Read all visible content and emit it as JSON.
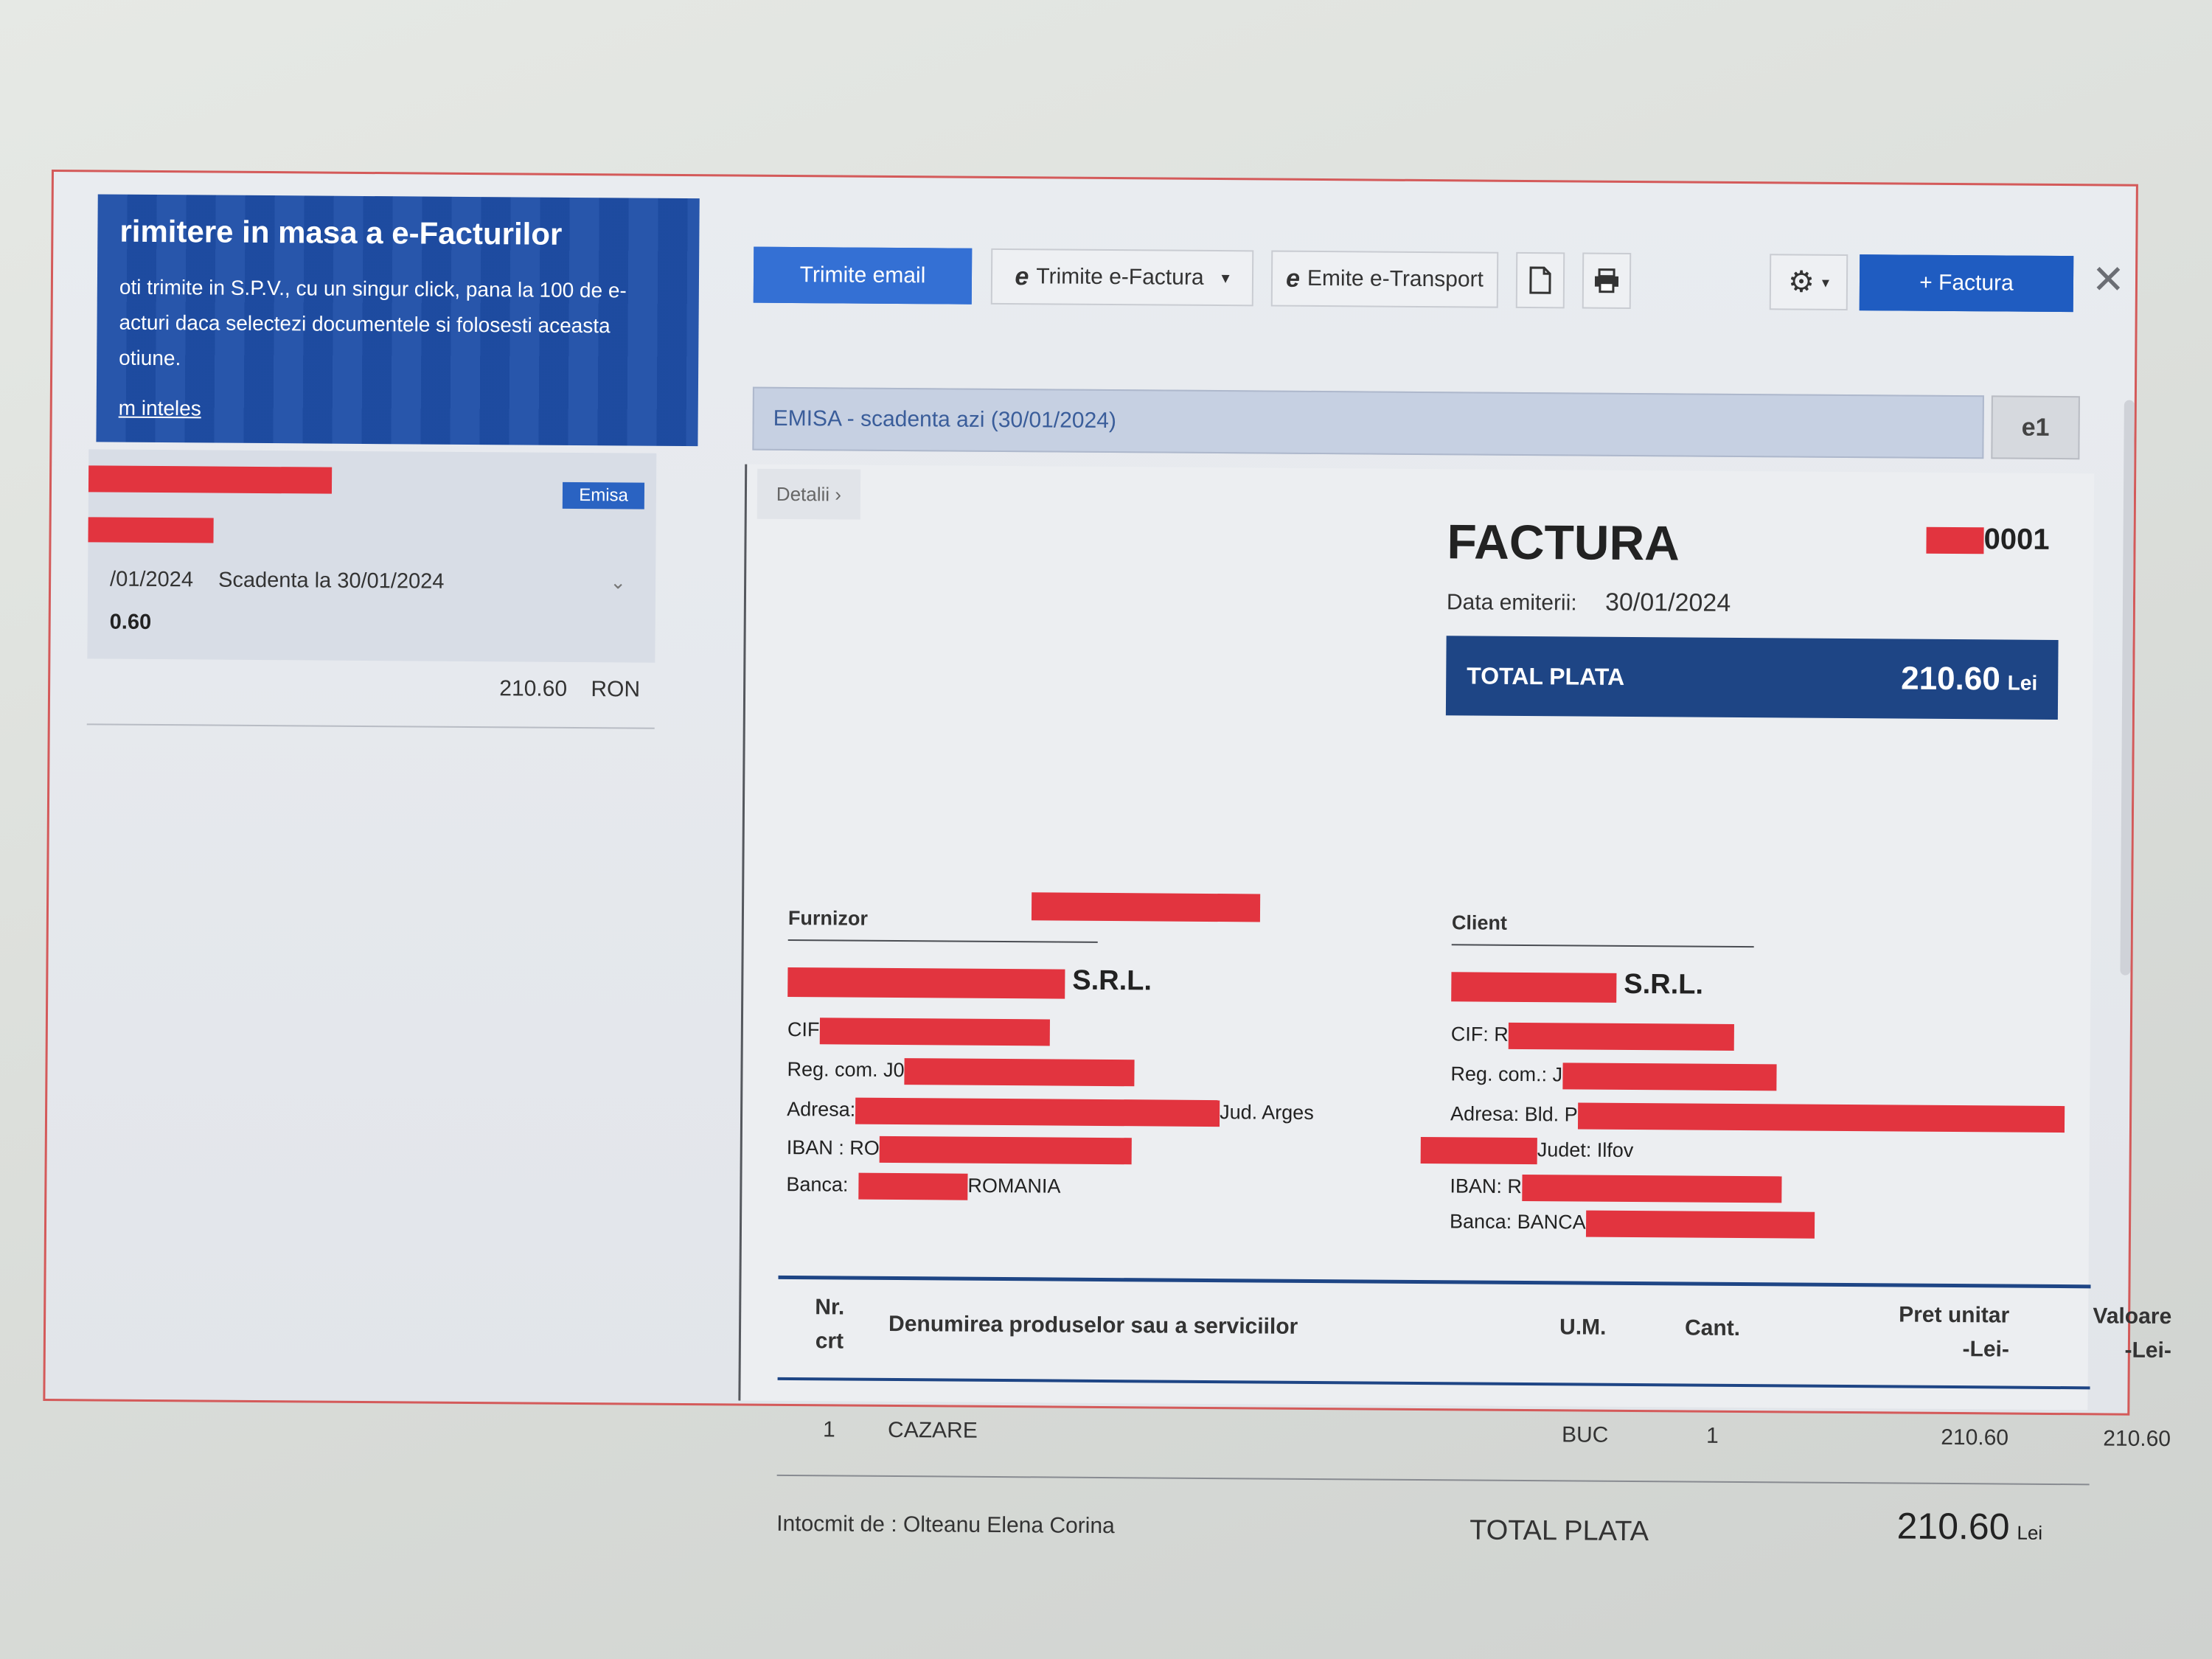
{
  "promo": {
    "title": "rimitere in masa a e-Facturilor",
    "text": "oti trimite in S.P.V., cu un singur click, pana la 100 de e-acturi daca selectezi documentele si folosesti aceasta otiune.",
    "link": "m inteles"
  },
  "doc_card": {
    "badge": "Emisa",
    "date": "/01/2024",
    "due": "Scadenta la 30/01/2024",
    "amount": "0.60",
    "total_value": "210.60",
    "total_currency": "RON"
  },
  "toolbar": {
    "send_email": "Trimite email",
    "send_efactura": "Trimite e-Factura",
    "emit_etransport": "Emite e-Transport",
    "new_invoice": "+ Factura",
    "close": "✕",
    "pdf_icon": "pdf-icon",
    "print_icon": "print-icon",
    "gear_icon": "gear-icon"
  },
  "status": {
    "text": "EMISA - scadenta azi (30/01/2024)",
    "button": "e1"
  },
  "invoice": {
    "details_tab": "Detalii ›",
    "title": "FACTURA",
    "number_suffix": "0001",
    "date_label": "Data emiterii:",
    "date_value": "30/01/2024",
    "total_label": "TOTAL PLATA",
    "total_value": "210.60",
    "total_currency": "Lei",
    "supplier": {
      "label": "Furnizor",
      "srl": "S.R.L.",
      "cif": "CIF",
      "reg": "Reg. com. J0",
      "address_label": "Adresa:",
      "address_suffix": "Jud. Arges",
      "iban": "IBAN : RO",
      "bank_label": "Banca:",
      "bank_suffix": "ROMANIA"
    },
    "client": {
      "label": "Client",
      "srl": "S.R.L.",
      "cif": "CIF: R",
      "reg": "Reg. com.: J",
      "address_label": "Adresa: Bld. P",
      "address_suffix": "Judet: Ilfov",
      "iban": "IBAN: R",
      "bank_label": "Banca: BANCA"
    },
    "table": {
      "headers": {
        "nr_1": "Nr.",
        "nr_2": "crt",
        "name": "Denumirea produselor sau a serviciilor",
        "um": "U.M.",
        "qty": "Cant.",
        "price_1": "Pret unitar",
        "price_2": "-Lei-",
        "value_1": "Valoare",
        "value_2": "-Lei-"
      },
      "rows": [
        {
          "nr": "1",
          "name": "CAZARE",
          "um": "BUC",
          "qty": "1",
          "price": "210.60",
          "value": "210.60"
        }
      ]
    },
    "footer": {
      "prepared_by": "Intocmit de : Olteanu Elena Corina",
      "total_label": "TOTAL PLATA",
      "total_value": "210.60",
      "total_currency": "Lei"
    }
  },
  "colors": {
    "brand_blue": "#1f5cc1",
    "banner_navy": "#1e4585",
    "redaction": "#e2343f"
  }
}
